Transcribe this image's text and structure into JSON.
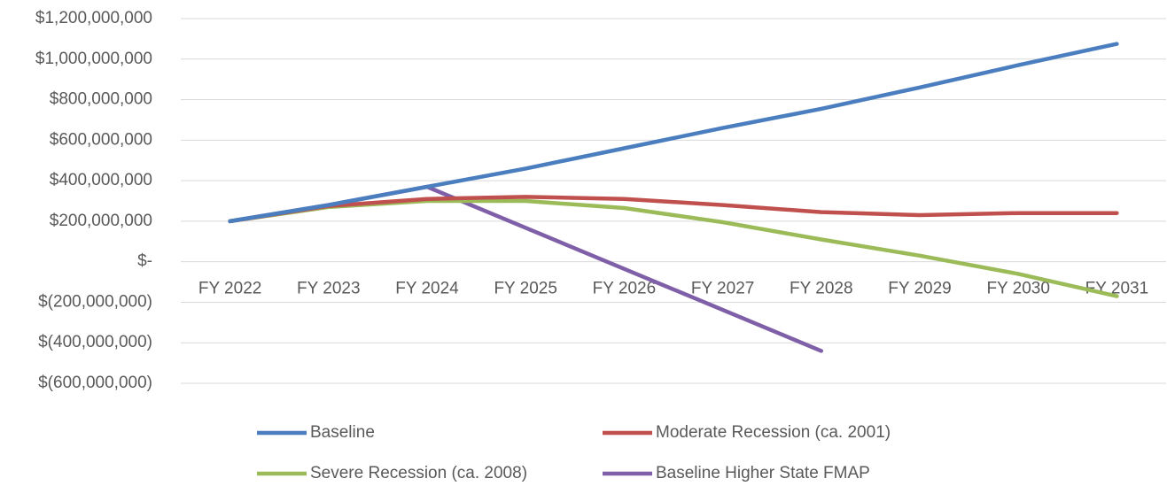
{
  "chart_data": {
    "type": "line",
    "categories": [
      "FY 2022",
      "FY 2023",
      "FY 2024",
      "FY 2025",
      "FY 2026",
      "FY 2027",
      "FY 2028",
      "FY 2029",
      "FY 2030",
      "FY 2031"
    ],
    "ylim": [
      -600000000,
      1200000000
    ],
    "y_ticks": [
      1200000000,
      1000000000,
      800000000,
      600000000,
      400000000,
      200000000,
      0,
      -200000000,
      -400000000,
      -600000000
    ],
    "y_tick_labels": [
      "$1,200,000,000",
      "$1,000,000,000",
      "$800,000,000",
      "$600,000,000",
      "$400,000,000",
      "$200,000,000",
      "$-",
      "$(200,000,000)",
      "$(400,000,000)",
      "$(600,000,000)"
    ],
    "grid": true,
    "legend_position": "bottom",
    "series": [
      {
        "name": "Baseline",
        "color": "#4a7ebf",
        "values": [
          200000000,
          280000000,
          370000000,
          460000000,
          560000000,
          660000000,
          755000000,
          860000000,
          970000000,
          1075000000
        ]
      },
      {
        "name": "Moderate Recession (ca. 2001)",
        "color": "#c0504d",
        "values": [
          200000000,
          275000000,
          310000000,
          320000000,
          310000000,
          280000000,
          245000000,
          230000000,
          240000000,
          240000000
        ]
      },
      {
        "name": "Severe Recession (ca. 2008)",
        "color": "#9bbb59",
        "values": [
          200000000,
          270000000,
          300000000,
          300000000,
          265000000,
          195000000,
          110000000,
          30000000,
          -60000000,
          -170000000
        ]
      },
      {
        "name": "Baseline Higher State FMAP",
        "color": "#7f5fa8",
        "values": [
          200000000,
          280000000,
          370000000,
          null,
          null,
          null,
          -440000000,
          null,
          null,
          null
        ]
      }
    ]
  }
}
